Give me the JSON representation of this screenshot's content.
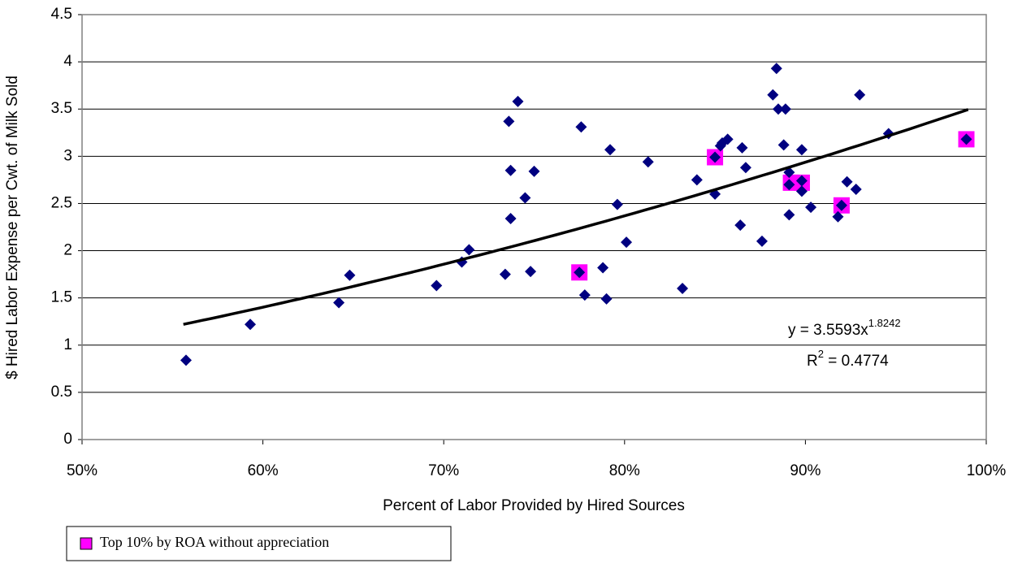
{
  "chart_data": {
    "type": "scatter",
    "x_label": "Percent of Labor Provided by Hired Sources",
    "y_label": "$ Hired Labor Expense per Cwt. of Milk Sold",
    "xlim": [
      50,
      100
    ],
    "ylim": [
      0,
      4.5
    ],
    "xticks": [
      {
        "value": 50,
        "label": "50%"
      },
      {
        "value": 60,
        "label": "60%"
      },
      {
        "value": 70,
        "label": "70%"
      },
      {
        "value": 80,
        "label": "80%"
      },
      {
        "value": 90,
        "label": "90%"
      },
      {
        "value": 100,
        "label": "100%"
      }
    ],
    "yticks": [
      0,
      0.5,
      1,
      1.5,
      2,
      2.5,
      3,
      3.5,
      4,
      4.5
    ],
    "grid": true,
    "legend": "bottom-left",
    "series": [
      {
        "color": "#000080",
        "marker": "diamond",
        "x": [
          55.75,
          59.3,
          64.2,
          64.8,
          69.6,
          71.0,
          71.4,
          73.4,
          73.6,
          73.7,
          73.7,
          74.1,
          74.5,
          74.8,
          75.0,
          77.5,
          77.6,
          77.8,
          78.8,
          79.0,
          79.2,
          79.6,
          80.1,
          81.3,
          83.2,
          84.0,
          85.0,
          85.0,
          85.3,
          85.4,
          85.7,
          86.4,
          86.5,
          86.7,
          87.6,
          88.2,
          88.4,
          88.5,
          88.9,
          88.8,
          89.1,
          89.1,
          89.1,
          89.8,
          89.8,
          89.8,
          90.3,
          91.8,
          92.0,
          92.3,
          92.8,
          93.0,
          94.6,
          98.9
        ],
        "values": [
          0.84,
          1.22,
          1.45,
          1.74,
          1.63,
          1.88,
          2.01,
          1.75,
          3.37,
          2.85,
          2.34,
          3.58,
          2.56,
          1.78,
          2.84,
          1.77,
          3.31,
          1.53,
          1.82,
          1.49,
          3.07,
          2.49,
          2.09,
          2.94,
          1.6,
          2.75,
          2.99,
          2.6,
          3.11,
          3.14,
          3.18,
          2.27,
          3.09,
          2.88,
          2.1,
          3.65,
          3.93,
          3.5,
          3.5,
          3.12,
          2.83,
          2.7,
          2.38,
          2.74,
          2.63,
          3.07,
          2.46,
          2.36,
          2.48,
          2.73,
          2.65,
          3.65,
          3.24,
          3.18
        ]
      },
      {
        "name": "Top 10% by ROA without appreciation",
        "color": "#ff00ff",
        "marker": "square",
        "x": [
          77.5,
          85.0,
          89.2,
          89.8,
          92.0,
          98.9
        ],
        "values": [
          1.77,
          2.99,
          2.72,
          2.72,
          2.48,
          3.18
        ]
      }
    ],
    "trendline": {
      "coefficient": 3.5593,
      "exponent": 1.8242,
      "r_squared": 0.4774,
      "x_range": [
        55.6,
        99
      ],
      "equation": "y = 3.5593x",
      "equation_exponent": "1.8242",
      "r2_label": "R",
      "r2_superscript": "2",
      "r2_value": " = 0.4774"
    }
  }
}
